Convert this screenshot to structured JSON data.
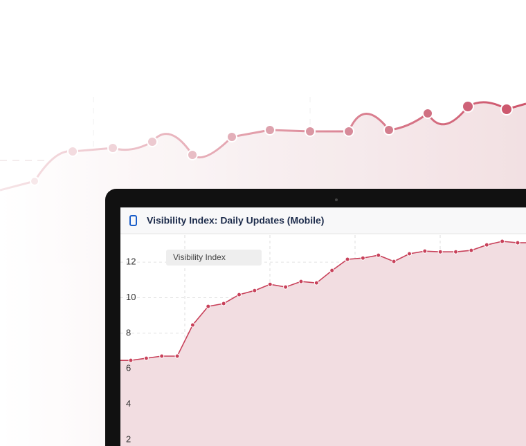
{
  "chart_data": {
    "type": "line",
    "title": "Visibility Index: Daily Updates (Mobile)",
    "series": [
      {
        "name": "Visibility Index",
        "color": "#c8415a",
        "values": [
          6.47,
          6.59,
          6.71,
          6.71,
          8.46,
          9.51,
          9.67,
          10.17,
          10.4,
          10.75,
          10.6,
          10.91,
          10.83,
          11.53,
          12.16,
          12.23,
          12.39,
          12.04,
          12.47,
          12.62,
          12.58,
          12.58,
          12.66,
          12.97,
          13.17,
          13.09
        ]
      }
    ],
    "ylim": [
      1.65,
      13.6
    ],
    "yticks": [
      2,
      4,
      6,
      8,
      10,
      12
    ],
    "grid": true
  }
}
